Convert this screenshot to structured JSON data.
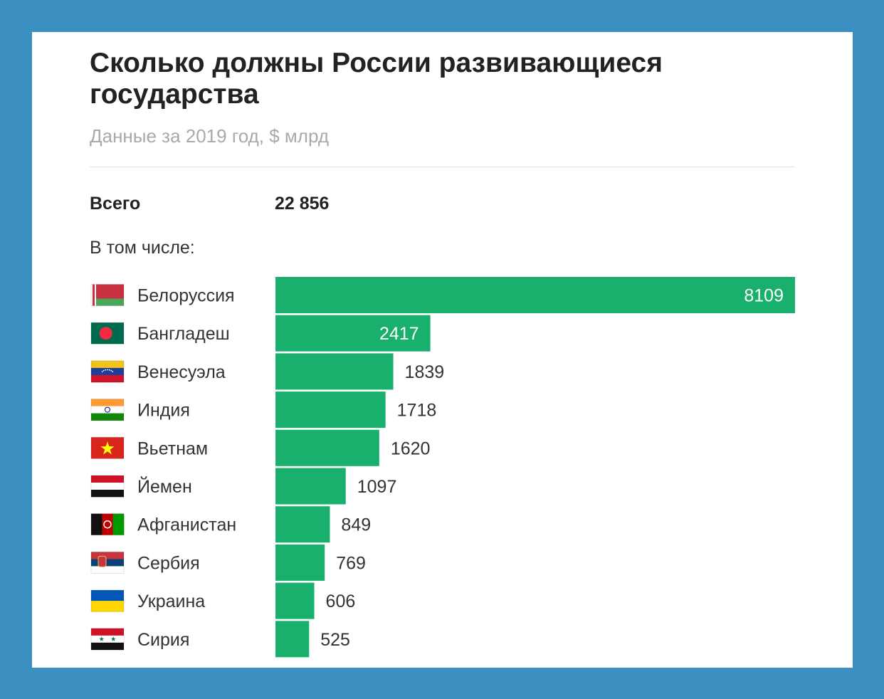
{
  "header": {
    "title": "Сколько должны России развивающиеся государства",
    "subtitle": "Данные за 2019 год, $ млрд"
  },
  "summary": {
    "total_label": "Всего",
    "total_value": "22 856",
    "subtotal_label": "В том числе:"
  },
  "colors": {
    "bar": "#19b06e",
    "page_background": "#3b8fc1",
    "card": "#ffffff"
  },
  "chart_data": {
    "type": "bar",
    "orientation": "horizontal",
    "title": "Сколько должны России развивающиеся государства",
    "subtitle": "Данные за 2019 год, $ млрд",
    "categories": [
      "Белоруссия",
      "Бангладеш",
      "Венесуэла",
      "Индия",
      "Вьетнам",
      "Йемен",
      "Афганистан",
      "Сербия",
      "Украина",
      "Сирия"
    ],
    "values": [
      8109,
      2417,
      1839,
      1718,
      1620,
      1097,
      849,
      769,
      606,
      525
    ],
    "flags": [
      "belarus-flag",
      "bangladesh-flag",
      "venezuela-flag",
      "india-flag",
      "vietnam-flag",
      "yemen-flag",
      "afghanistan-flag",
      "serbia-flag",
      "ukraine-flag",
      "syria-flag"
    ],
    "xlim": [
      0,
      8109
    ],
    "grid": false,
    "data_labels": true
  }
}
